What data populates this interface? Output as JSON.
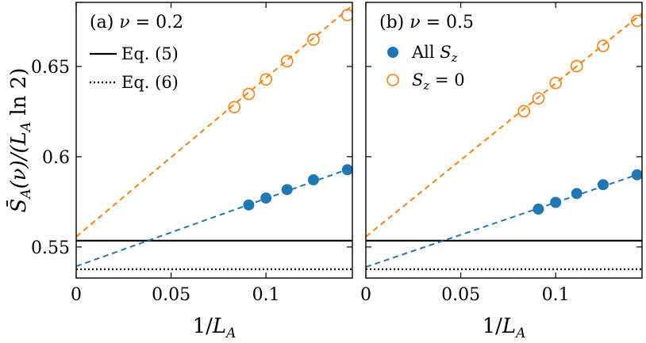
{
  "chart_data": [
    {
      "type": "scatter",
      "panel_title": "(a) ν = 0.2",
      "xlabel": "1/L_A",
      "ylabel": "S̄_A(ν)/(L_A ln 2)",
      "xlim": [
        0,
        0.1455
      ],
      "ylim": [
        0.5328,
        0.6855
      ],
      "xticks": [
        0,
        0.05,
        0.1
      ],
      "xtick_labels": [
        "0",
        "0.05",
        "0.1"
      ],
      "yticks": [
        0.55,
        0.6,
        0.65
      ],
      "ytick_labels": [
        "0.55",
        "0.6",
        "0.65"
      ],
      "legend_position": "upper-left",
      "legend": [
        {
          "label": "Eq. (5)",
          "style": "solid"
        },
        {
          "label": "Eq. (6)",
          "style": "dotted"
        }
      ],
      "hlines": [
        {
          "y": 0.5535,
          "style": "solid",
          "color": "#000000"
        },
        {
          "y": 0.5377,
          "style": "dotted",
          "color": "#000000"
        }
      ],
      "series": [
        {
          "marker": "filled-circle",
          "color": "#1f77b4",
          "x": [
            0.0909,
            0.1,
            0.1111,
            0.125,
            0.1429
          ],
          "y": [
            0.5733,
            0.5771,
            0.5818,
            0.5872,
            0.5928
          ],
          "fit": {
            "intercept": 0.5393,
            "slope": 0.3755
          }
        },
        {
          "marker": "open-circle",
          "color": "#ff7f0e",
          "x": [
            0.0833,
            0.0909,
            0.1,
            0.1111,
            0.125,
            0.1429
          ],
          "y": [
            0.6275,
            0.6348,
            0.6428,
            0.6529,
            0.6649,
            0.6785
          ],
          "fit": {
            "intercept": 0.5557,
            "slope": 0.8802
          }
        }
      ]
    },
    {
      "type": "scatter",
      "panel_title": "(b) ν = 0.5",
      "xlabel": "1/L_A",
      "ylabel": "",
      "xlim": [
        0,
        0.1455
      ],
      "ylim": [
        0.5328,
        0.6855
      ],
      "xticks": [
        0,
        0.05,
        0.1
      ],
      "xtick_labels": [
        "0",
        "0.05",
        "0.1"
      ],
      "yticks": [
        0.55,
        0.6,
        0.65
      ],
      "legend_position": "upper-left",
      "legend": [
        {
          "label": "All S_z",
          "marker": "filled-circle",
          "color": "#1f77b4"
        },
        {
          "label": "S_z = 0",
          "marker": "open-circle",
          "color": "#ff7f0e"
        }
      ],
      "hlines": [
        {
          "y": 0.5535,
          "style": "solid",
          "color": "#000000"
        },
        {
          "y": 0.5377,
          "style": "dotted",
          "color": "#000000"
        }
      ],
      "series": [
        {
          "marker": "filled-circle",
          "color": "#1f77b4",
          "x": [
            0.0909,
            0.1,
            0.1111,
            0.125,
            0.1429
          ],
          "y": [
            0.571,
            0.5747,
            0.5796,
            0.5845,
            0.59
          ],
          "fit": {
            "intercept": 0.5389,
            "slope": 0.3576
          }
        },
        {
          "marker": "open-circle",
          "color": "#ff7f0e",
          "x": [
            0.0833,
            0.0909,
            0.1,
            0.1111,
            0.125,
            0.1429
          ],
          "y": [
            0.6252,
            0.6323,
            0.6408,
            0.6502,
            0.6614,
            0.6753
          ],
          "fit": {
            "intercept": 0.5557,
            "slope": 0.8498
          }
        }
      ]
    }
  ]
}
